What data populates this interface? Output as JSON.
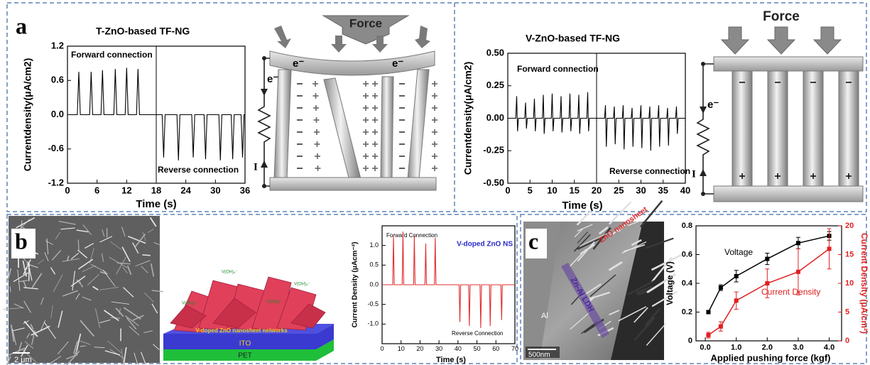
{
  "panel_labels": [
    "a",
    "b",
    "c"
  ],
  "diagrams": {
    "force": "Force",
    "electron": "e⁻",
    "current": "I",
    "network": "V-doped ZnO nanosheet networks",
    "ito": "ITO",
    "pet": "PET",
    "ion": "V(OH)₄⁻"
  },
  "micrographs": {
    "scale_b": "2 μm",
    "scale_c": "500nm",
    "al": "Al",
    "zno": "ZnO nanosheet",
    "ldh": "Zn-Al LDH"
  },
  "chart_data": [
    {
      "type": "line",
      "title": "T-ZnO-based TF-NG",
      "xlabel": "Time (s)",
      "ylabel": "Currentdensity(μA/cm2)",
      "annotations": [
        "Forward connection",
        "Reverse connection"
      ],
      "divider": 18,
      "color": "#000000",
      "xlim": [
        0,
        36
      ],
      "xticks": [
        0,
        6,
        12,
        18,
        24,
        30,
        36
      ],
      "ylim": [
        -1.2,
        1.2
      ],
      "yticks": [
        -1.2,
        -0.6,
        {
          "value": 0,
          "label": "0.0"
        },
        0.6,
        1.2
      ],
      "x": [
        0,
        2,
        2.3,
        2.6,
        4.5,
        4.8,
        5.1,
        6.8,
        7.1,
        7.4,
        9.4,
        9.7,
        10,
        11.7,
        12,
        12.3,
        14,
        14.3,
        14.6,
        18,
        19.2,
        19.5,
        19.8,
        22.2,
        22.5,
        22.8,
        25.2,
        25.5,
        25.8,
        27.7,
        28,
        28.3,
        30.7,
        31,
        31.3,
        33.2,
        33.5,
        33.8,
        35.2,
        35.5,
        35.8,
        36
      ],
      "values": [
        0,
        0,
        0.75,
        0,
        0,
        0.75,
        0,
        0,
        0.78,
        0,
        0,
        0.8,
        0,
        0,
        0.82,
        0,
        0,
        0.8,
        0,
        0,
        0,
        -0.75,
        0,
        0,
        -0.8,
        0,
        0,
        -0.75,
        0,
        0,
        -0.78,
        0,
        0,
        -0.8,
        0,
        0,
        -0.78,
        0,
        0,
        -0.75,
        0,
        0
      ]
    },
    {
      "type": "line",
      "title": "V-ZnO-based TF-NG",
      "xlabel": "Time (s)",
      "ylabel": "Currentdensity(μA/cm2)",
      "annotations": [
        "Forward connection",
        "Reverse connection"
      ],
      "divider": 20,
      "color": "#000000",
      "xlim": [
        0,
        40
      ],
      "xticks": [
        0,
        5,
        10,
        15,
        20,
        25,
        30,
        35,
        40
      ],
      "ylim": [
        -0.5,
        0.5
      ],
      "yticks": [
        {
          "value": -0.5,
          "label": "-0.50"
        },
        -0.25,
        {
          "value": 0,
          "label": "0.00"
        },
        0.25,
        {
          "value": 0.5,
          "label": "0.50"
        }
      ],
      "x": [
        0,
        1.8,
        2,
        2.2,
        2.4,
        3.8,
        4,
        4.2,
        4.4,
        5.8,
        6,
        6.2,
        6.4,
        7.8,
        8,
        8.2,
        8.4,
        9.8,
        10,
        10.2,
        10.4,
        11.8,
        12,
        12.2,
        12.4,
        13.8,
        14,
        14.2,
        14.4,
        15.8,
        16,
        16.2,
        16.4,
        17.8,
        18,
        18.2,
        18.4,
        21.8,
        22,
        22.2,
        22.4,
        23.8,
        24,
        24.2,
        24.4,
        25.8,
        26,
        26.2,
        26.4,
        27.8,
        28,
        28.2,
        28.4,
        29.8,
        30,
        30.2,
        30.4,
        31.8,
        32,
        32.2,
        32.4,
        33.8,
        34,
        34.2,
        34.4,
        35.8,
        36,
        36.2,
        36.4,
        37.8,
        38,
        38.2,
        38.4,
        40
      ],
      "values": [
        0,
        0,
        0.17,
        -0.1,
        0,
        0,
        0.12,
        -0.08,
        0,
        0,
        0.15,
        -0.1,
        0,
        0,
        0.18,
        -0.12,
        0,
        0,
        0.19,
        -0.1,
        0,
        0,
        0.17,
        -0.11,
        0,
        0,
        0.19,
        -0.1,
        0,
        0,
        0.18,
        -0.12,
        0,
        0,
        0.2,
        -0.1,
        0,
        0,
        0.1,
        -0.22,
        0,
        0,
        0.09,
        -0.2,
        0,
        0,
        0.1,
        -0.24,
        0,
        0,
        0.08,
        -0.22,
        0,
        0,
        0.1,
        -0.23,
        0,
        0,
        0.09,
        -0.25,
        0,
        0,
        0.1,
        -0.22,
        0,
        0,
        0.08,
        -0.21,
        0,
        0,
        0.09,
        -0.12,
        0,
        0
      ]
    },
    {
      "type": "line",
      "title": "V-doped ZnO NS",
      "title_color": "#2a2acc",
      "xlabel": "Time (s)",
      "ylabel": "Current Density (μAcm⁻²)",
      "annotations": [
        "Forward Connection",
        "Reverse Connection"
      ],
      "color": "#e03030",
      "xlim": [
        0,
        70
      ],
      "xticks": [
        0,
        10,
        20,
        30,
        40,
        50,
        60,
        70
      ],
      "ylim": [
        -1.5,
        1.5
      ],
      "yticks": [
        {
          "value": -1,
          "label": "-1.0"
        },
        -0.5,
        {
          "value": 0,
          "label": "0.0"
        },
        0.5,
        {
          "value": 1,
          "label": "1.0"
        }
      ],
      "x": [
        0,
        5.6,
        6,
        6.4,
        10.6,
        11,
        11.4,
        16.6,
        17,
        17.4,
        22.6,
        23,
        23.4,
        27.6,
        28,
        28.4,
        40.6,
        41,
        41.4,
        45.6,
        46,
        46.4,
        51.6,
        52,
        52.4,
        56.6,
        57,
        57.4,
        62.6,
        63,
        63.4,
        70
      ],
      "values": [
        0,
        0,
        1.25,
        0,
        0,
        1.35,
        0,
        0,
        1.25,
        0,
        0,
        1.05,
        0,
        0,
        1.2,
        0,
        0,
        -0.95,
        0,
        0,
        -1.05,
        0,
        0,
        -1.1,
        0,
        0,
        -1.05,
        0,
        0,
        -0.9,
        0,
        0
      ]
    },
    {
      "type": "line",
      "xlabel": "Applied pushing force (kgf)",
      "ylabel": "Voltage (V)",
      "y2label": "Current Density (μA/cm²)",
      "xlim": [
        -0.3,
        4.4
      ],
      "xticks": [
        {
          "value": 0,
          "label": "0.0"
        },
        {
          "value": 1,
          "label": "1.0"
        },
        {
          "value": 2,
          "label": "2.0"
        },
        {
          "value": 3,
          "label": "3.0"
        },
        {
          "value": 4,
          "label": "4.0"
        }
      ],
      "ylim": [
        0,
        0.8
      ],
      "yticks": [
        0,
        0.2,
        0.4,
        0.6,
        0.8
      ],
      "y2lim": [
        0,
        20
      ],
      "y2ticks": [
        0,
        5,
        10,
        15,
        20
      ],
      "x": [
        0.1,
        0.5,
        1.0,
        2.0,
        3.0,
        4.0
      ],
      "series": [
        {
          "name": "Voltage",
          "color": "#000000",
          "values": [
            0.2,
            0.37,
            0.45,
            0.57,
            0.68,
            0.73
          ],
          "errors": [
            0.01,
            0.02,
            0.04,
            0.04,
            0.04,
            0.03
          ]
        },
        {
          "name": "Current Density",
          "color": "#e02020",
          "axis": "y2",
          "values": [
            1,
            2.5,
            7,
            10,
            12,
            16
          ],
          "errors": [
            0.5,
            0.8,
            1.5,
            2.5,
            4,
            3.5
          ]
        }
      ]
    }
  ]
}
